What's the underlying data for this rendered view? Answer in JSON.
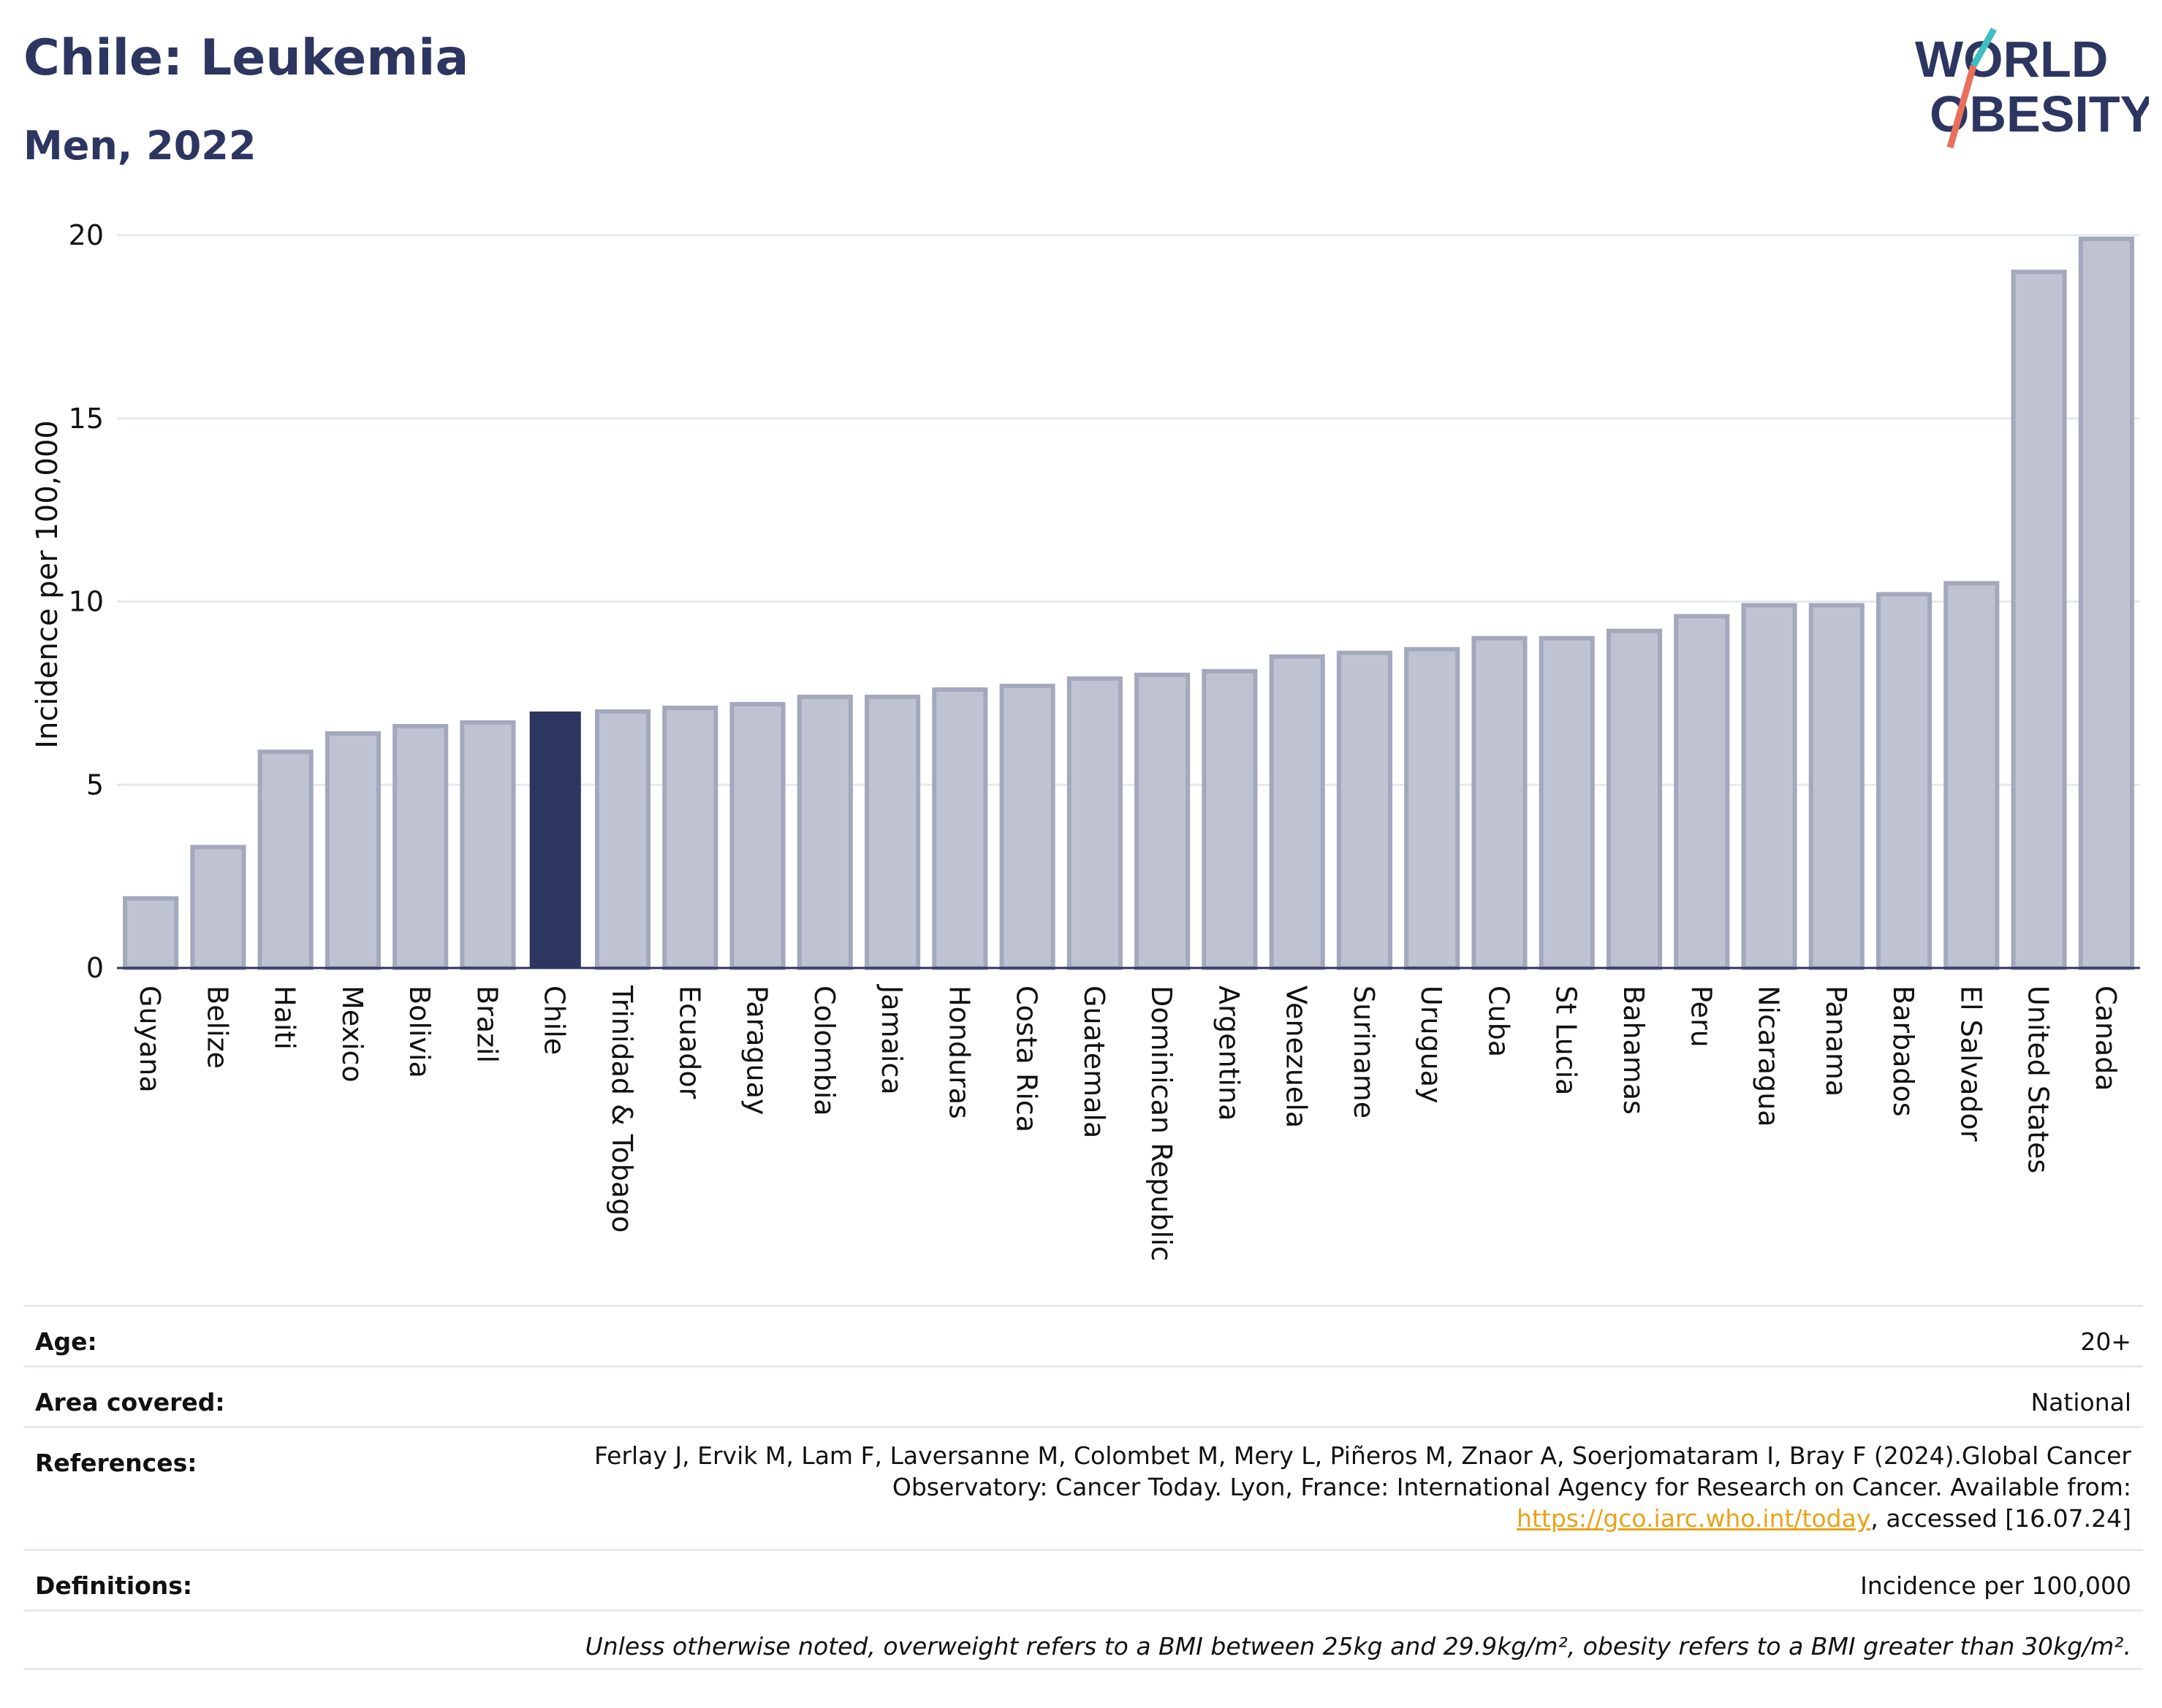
{
  "header": {
    "title": "Chile: Leukemia",
    "subtitle": "Men, 2022"
  },
  "logo": {
    "line1": "WORLD",
    "line2": "OBESITY"
  },
  "chart_data": {
    "type": "bar",
    "ylabel": "Incidence per 100,000",
    "ylim": [
      0,
      20
    ],
    "yticks": [
      0,
      5,
      10,
      15,
      20
    ],
    "highlight": "Chile",
    "categories": [
      "Guyana",
      "Belize",
      "Haiti",
      "Mexico",
      "Bolivia",
      "Brazil",
      "Chile",
      "Trinidad & Tobago",
      "Ecuador",
      "Paraguay",
      "Colombia",
      "Jamaica",
      "Honduras",
      "Costa Rica",
      "Guatemala",
      "Dominican Republic",
      "Argentina",
      "Venezuela",
      "Suriname",
      "Uruguay",
      "Cuba",
      "St Lucia",
      "Bahamas",
      "Peru",
      "Nicaragua",
      "Panama",
      "Barbados",
      "El Salvador",
      "United States",
      "Canada"
    ],
    "values": [
      1.9,
      3.3,
      5.9,
      6.4,
      6.6,
      6.7,
      7.0,
      7.0,
      7.1,
      7.2,
      7.4,
      7.4,
      7.6,
      7.7,
      7.9,
      8.0,
      8.1,
      8.5,
      8.6,
      8.7,
      9.0,
      9.0,
      9.2,
      9.6,
      9.9,
      9.9,
      10.2,
      10.5,
      19.0,
      19.9
    ],
    "colors": {
      "bar": "#bfc3d1",
      "bar_border": "#a3a8bd",
      "highlight": "#2d3561",
      "grid": "#e6e9ef",
      "axis": "#2d3561"
    }
  },
  "meta": {
    "age_label": "Age:",
    "age_value": "20+",
    "area_label": "Area covered:",
    "area_value": "National",
    "ref_label": "References:",
    "ref_text1": "Ferlay J, Ervik M, Lam F, Laversanne M, Colombet M, Mery L, Piñeros M, Znaor A, Soerjomataram I, Bray F (2024).Global Cancer Observatory: Cancer Today. Lyon, France: International Agency for Research on Cancer. Available from: ",
    "ref_link": "https://gco.iarc.who.int/today",
    "ref_text2": ", accessed [16.07.24]",
    "def_label": "Definitions:",
    "def_value": "Incidence per 100,000",
    "note": "Unless otherwise noted, overweight refers to a BMI between 25kg and 29.9kg/m², obesity refers to a BMI greater than 30kg/m²."
  }
}
